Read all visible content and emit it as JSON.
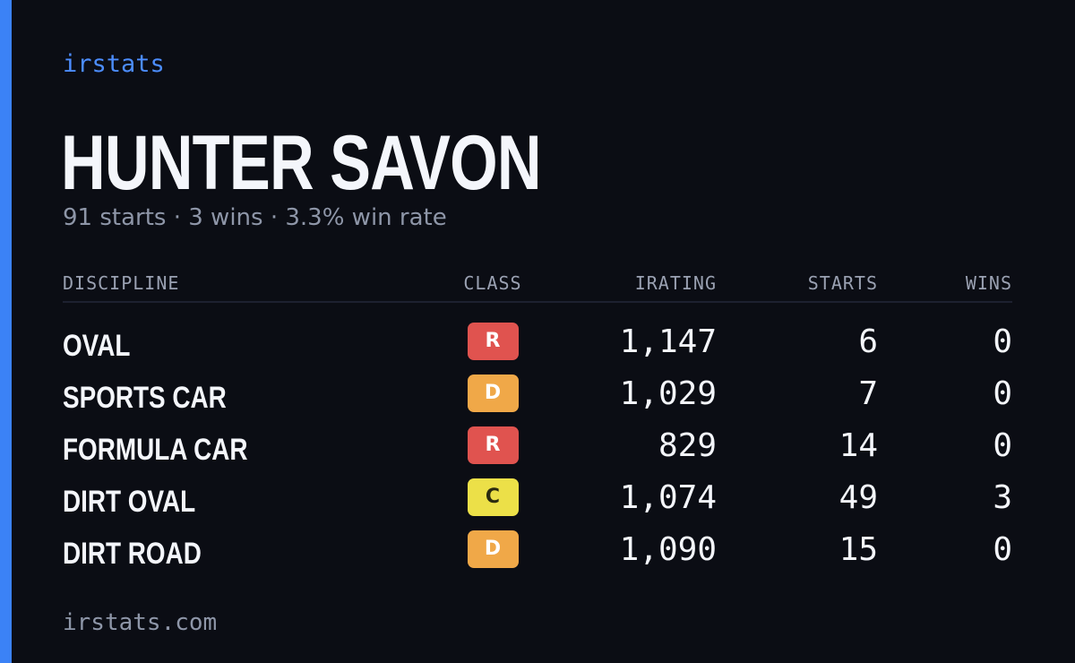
{
  "brand": "irstats",
  "driver": {
    "name": "HUNTER SAVON",
    "summary": "91 starts · 3 wins · 3.3% win rate"
  },
  "table": {
    "headers": {
      "discipline": "DISCIPLINE",
      "class": "CLASS",
      "irating": "IRATING",
      "starts": "STARTS",
      "wins": "WINS"
    },
    "rows": [
      {
        "discipline": "OVAL",
        "class": "R",
        "class_color": "#e0534f",
        "irating": "1,147",
        "starts": "6",
        "wins": "0"
      },
      {
        "discipline": "SPORTS CAR",
        "class": "D",
        "class_color": "#f0a848",
        "irating": "1,029",
        "starts": "7",
        "wins": "0"
      },
      {
        "discipline": "FORMULA CAR",
        "class": "R",
        "class_color": "#e0534f",
        "irating": "829",
        "starts": "14",
        "wins": "0"
      },
      {
        "discipline": "DIRT OVAL",
        "class": "C",
        "class_color": "#ece048",
        "irating": "1,074",
        "starts": "49",
        "wins": "3"
      },
      {
        "discipline": "DIRT ROAD",
        "class": "D",
        "class_color": "#f0a848",
        "irating": "1,090",
        "starts": "15",
        "wins": "0"
      }
    ]
  },
  "footer": "irstats.com",
  "colors": {
    "accent": "#3b82f6",
    "background": "#0b0d14",
    "brand_text": "#4c8dff"
  }
}
